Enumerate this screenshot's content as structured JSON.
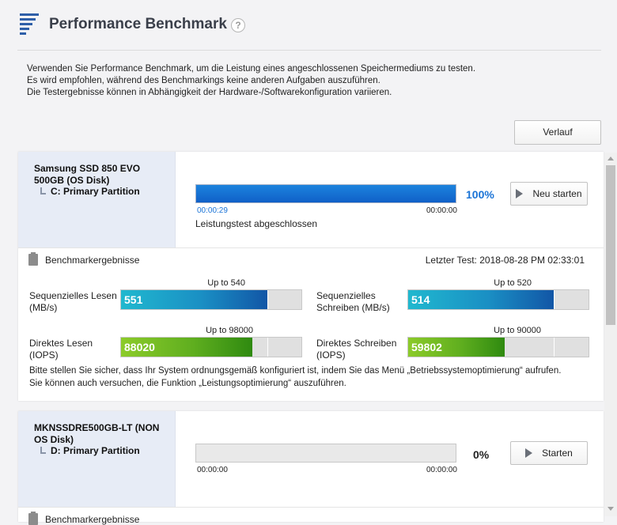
{
  "header": {
    "title": "Performance Benchmark",
    "help": "?"
  },
  "description": [
    "Verwenden Sie Performance Benchmark, um die Leistung eines angeschlossenen Speichermediums zu testen.",
    "Es wird empfohlen, während des Benchmarkings keine anderen Aufgaben auszuführen.",
    "Die Testergebnisse können in Abhängigkeit der Hardware-/Softwarekonfiguration variieren."
  ],
  "history_button": "Verlauf",
  "disks": [
    {
      "name": "Samsung SSD 850 EVO 500GB (OS Disk)",
      "partition": "C: Primary Partition",
      "progress": 1.0,
      "progress_text": "100%",
      "time_elapsed": "00:00:29",
      "time_remaining": "00:00:00",
      "status": "Leistungstest abgeschlossen",
      "button": "Neu starten",
      "results_label": "Benchmarkergebnisse",
      "last_test": "Letzter Test: 2018-08-28 PM 02:33:01",
      "metrics": [
        {
          "label1": "Sequenzielles Lesen",
          "label2": "(MB/s)",
          "upto": "Up to 540",
          "value": "551",
          "fill": 0.81,
          "tick": 0.81,
          "color": "cyan"
        },
        {
          "label1": "Sequenzielles",
          "label2": "Schreiben (MB/s)",
          "upto": "Up to 520",
          "value": "514",
          "fill": 0.805,
          "tick": 0.805,
          "color": "cyan"
        },
        {
          "label1": "Direktes Lesen",
          "label2": "(IOPS)",
          "upto": "Up to 98000",
          "value": "88020",
          "fill": 0.73,
          "tick": 0.81,
          "color": "green"
        },
        {
          "label1": "Direktes Schreiben",
          "label2": "(IOPS)",
          "upto": "Up to 90000",
          "value": "59802",
          "fill": 0.535,
          "tick": 0.805,
          "color": "green"
        }
      ],
      "notes": [
        "Bitte stellen Sie sicher, dass Ihr System ordnungsgemäß konfiguriert ist, indem Sie das Menü „Betriebssystemoptimierung“ aufrufen.",
        "Sie können auch versuchen, die Funktion „Leistungsoptimierung“ auszuführen."
      ]
    },
    {
      "name": "MKNSSDRE500GB-LT  (NON OS Disk)",
      "partition": "D: Primary Partition",
      "progress": 0,
      "progress_text": "0%",
      "time_elapsed": "00:00:00",
      "time_remaining": "00:00:00",
      "button": "Starten",
      "results_label": "Benchmarkergebnisse"
    }
  ],
  "colors": {
    "accent": "#1a73d6",
    "cyan": "#1aa9c9",
    "green": "#7cc023",
    "progress": "#1c83dd"
  }
}
